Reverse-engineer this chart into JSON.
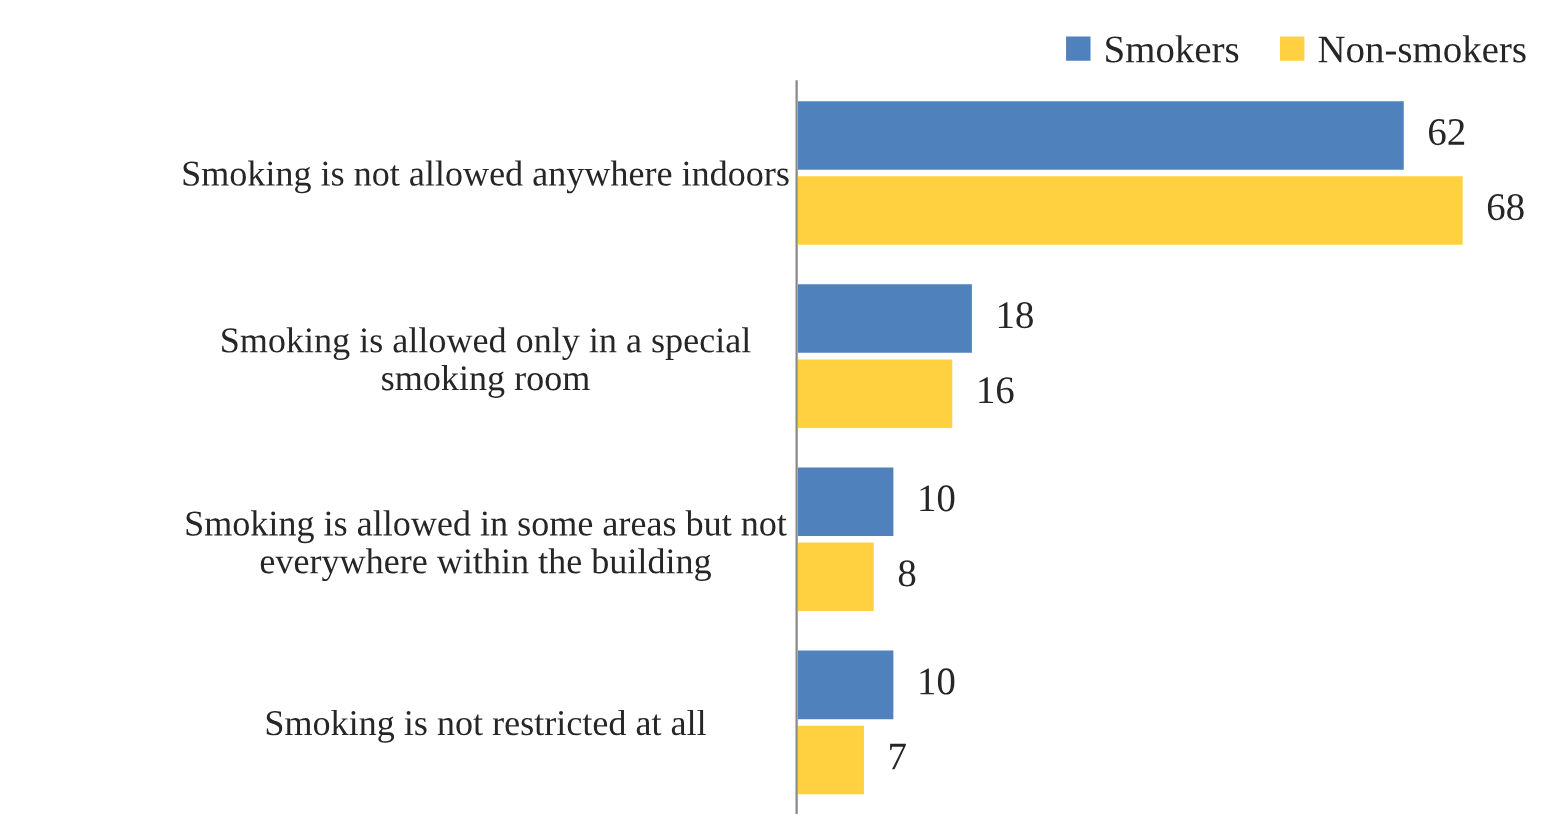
{
  "chart_data": {
    "type": "bar",
    "orientation": "horizontal",
    "categories": [
      "Smoking is not allowed anywhere indoors",
      "Smoking is allowed only in a special\nsmoking room",
      "Smoking is allowed in some areas but not\neverywhere within the building",
      "Smoking is not restricted at all"
    ],
    "series": [
      {
        "name": "Smokers",
        "color": "#4f81bd",
        "values": [
          62,
          18,
          10,
          10
        ]
      },
      {
        "name": "Non-smokers",
        "color": "#ffd040",
        "values": [
          68,
          16,
          8,
          7
        ]
      }
    ],
    "data_labels": true,
    "legend": "top right",
    "grid": false
  }
}
